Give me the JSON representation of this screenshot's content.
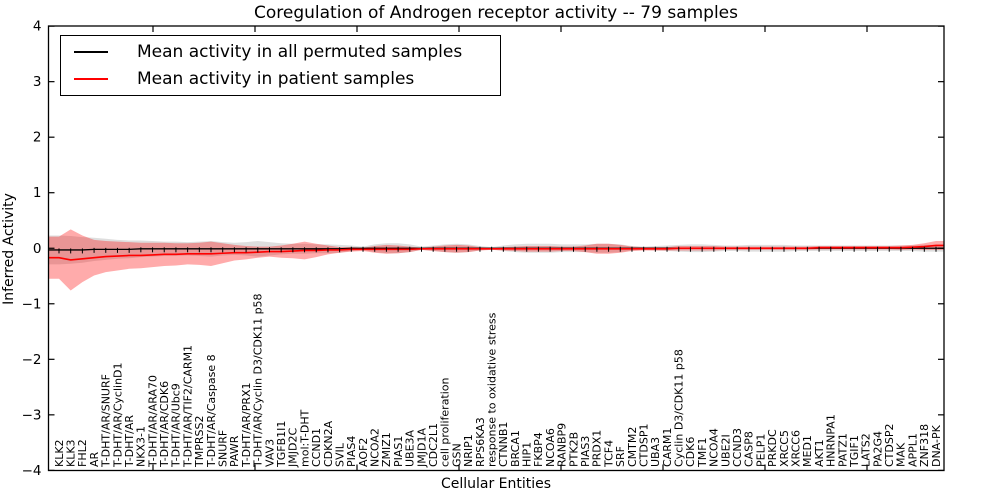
{
  "figure": {
    "title": "Coregulation of Androgen receptor activity -- 79 samples",
    "xlabel": "Cellular Entities",
    "ylabel": "Inferred Activity"
  },
  "legend": {
    "items": [
      {
        "label": "Mean activity in all permuted samples",
        "color": "#000000"
      },
      {
        "label": "Mean activity in patient samples",
        "color": "#ff0000"
      }
    ]
  },
  "chart_data": {
    "type": "line",
    "title": "Coregulation of Androgen receptor activity -- 79 samples",
    "xlabel": "Cellular Entities",
    "ylabel": "Inferred Activity",
    "ylim": [
      -4,
      4
    ],
    "yticks": [
      -4,
      -3,
      -2,
      -1,
      0,
      1,
      2,
      3,
      4
    ],
    "grid": false,
    "legend_position": "upper left",
    "band_meaning": "mean +/- std shaded region per series",
    "categories": [
      "KLK2",
      "KLK3",
      "FHL2",
      "AR",
      "T-DHT/AR/SNURF",
      "T-DHT/AR/CyclinD1",
      "T-DHT/AR",
      "NKX3-1",
      "T-DHT/AR/ARA70",
      "T-DHT/AR/CDK6",
      "T-DHT/AR/Ubc9",
      "T-DHT/AR/TIF2/CARM1",
      "TMPRSS2",
      "T-DHT/AR/Caspase 8",
      "SNURF",
      "PAWR",
      "T-DHT/AR/PRX1",
      "T-DHT/AR/Cyclin D3/CDK11 p58",
      "VAV3",
      "TGFB1I1",
      "JMJD2C",
      "mol:T-DHT",
      "CCND1",
      "CDKN2A",
      "SVIL",
      "PIAS4",
      "AOF2",
      "NCOA2",
      "ZMIZ1",
      "PIAS1",
      "UBE3A",
      "JMJD1A",
      "CDC2L1",
      "cell proliferation",
      "GSN",
      "NRIP1",
      "RPS6KA3",
      "response to oxidative stress",
      "CTNNB1",
      "BRCA1",
      "HIP1",
      "FKBP4",
      "NCOA6",
      "RANBP9",
      "PTK2B",
      "PIAS3",
      "PRDX1",
      "TCF4",
      "SRF",
      "CMTM2",
      "CTDSP1",
      "UBA3",
      "CARM1",
      "Cyclin D3/CDK11 p58",
      "CDK6",
      "TMF1",
      "NCOA4",
      "UBE2I",
      "CCND3",
      "CASP8",
      "PELP1",
      "PRKDC",
      "XRCC5",
      "XRCC6",
      "MED1",
      "AKT1",
      "HNRNPA1",
      "PATZ1",
      "TGIF1",
      "LATS2",
      "PA2G4",
      "CTDSP2",
      "MAK",
      "APPL1",
      "ZNF318",
      "DNA-PK"
    ],
    "series": [
      {
        "name": "Mean activity in all permuted samples",
        "color": "#000000",
        "band_color": "rgba(0,0,0,0.13)",
        "markers": true,
        "mean": [
          -0.03,
          -0.03,
          -0.03,
          -0.02,
          -0.02,
          -0.02,
          -0.02,
          -0.01,
          -0.01,
          -0.01,
          -0.01,
          -0.01,
          -0.01,
          -0.01,
          -0.01,
          -0.01,
          -0.01,
          -0.01,
          -0.01,
          -0.01,
          -0.01,
          -0.01,
          -0.01,
          -0.01,
          -0.01,
          0,
          0,
          0,
          0,
          0,
          0,
          0,
          0,
          0,
          0,
          0,
          0,
          0,
          0,
          0,
          0,
          0,
          0,
          0,
          0,
          0,
          0,
          0,
          0,
          0,
          0,
          0,
          0,
          0,
          0,
          0,
          0,
          0,
          0,
          0,
          0,
          0,
          0,
          0,
          0,
          0,
          0,
          0,
          0,
          0,
          0,
          0,
          0,
          0,
          0,
          0
        ],
        "std": [
          0.26,
          0.25,
          0.23,
          0.21,
          0.19,
          0.17,
          0.16,
          0.15,
          0.14,
          0.13,
          0.13,
          0.12,
          0.13,
          0.14,
          0.12,
          0.11,
          0.12,
          0.14,
          0.12,
          0.1,
          0.09,
          0.09,
          0.08,
          0.08,
          0.07,
          0.05,
          0.03,
          0.07,
          0.09,
          0.09,
          0.07,
          0.03,
          0.05,
          0.07,
          0.08,
          0.07,
          0.04,
          0.02,
          0.05,
          0.07,
          0.08,
          0.08,
          0.08,
          0.07,
          0.07,
          0.07,
          0.08,
          0.08,
          0.07,
          0.04,
          0.03,
          0.04,
          0.05,
          0.06,
          0.07,
          0.07,
          0.06,
          0.05,
          0.05,
          0.06,
          0.06,
          0.06,
          0.06,
          0.05,
          0.05,
          0.05,
          0.05,
          0.05,
          0.05,
          0.05,
          0.05,
          0.05,
          0.05,
          0.05,
          0.06,
          0.06
        ]
      },
      {
        "name": "Mean activity in patient samples",
        "color": "#ff0000",
        "band_color": "rgba(255,0,0,0.33)",
        "markers": false,
        "mean": [
          -0.17,
          -0.21,
          -0.19,
          -0.17,
          -0.15,
          -0.14,
          -0.13,
          -0.13,
          -0.12,
          -0.11,
          -0.11,
          -0.1,
          -0.1,
          -0.1,
          -0.09,
          -0.08,
          -0.08,
          -0.07,
          -0.06,
          -0.06,
          -0.05,
          -0.04,
          -0.04,
          -0.03,
          -0.03,
          -0.02,
          -0.02,
          -0.02,
          -0.02,
          -0.02,
          -0.02,
          -0.01,
          -0.01,
          -0.01,
          -0.01,
          -0.01,
          -0.01,
          -0.01,
          -0.01,
          -0.01,
          -0.01,
          -0.01,
          -0.01,
          -0.01,
          -0.01,
          -0.01,
          -0.01,
          -0.01,
          -0.01,
          -0.01,
          -0.01,
          -0.01,
          -0.01,
          0,
          0,
          0,
          0,
          0,
          0,
          0,
          0,
          0,
          0,
          0,
          0,
          0.01,
          0.01,
          0.01,
          0.01,
          0.01,
          0.01,
          0.01,
          0.01,
          0.02,
          0.03,
          0.05
        ],
        "std": [
          0.38,
          0.55,
          0.42,
          0.32,
          0.28,
          0.26,
          0.24,
          0.23,
          0.22,
          0.21,
          0.2,
          0.19,
          0.2,
          0.22,
          0.18,
          0.14,
          0.12,
          0.1,
          0.09,
          0.11,
          0.13,
          0.16,
          0.12,
          0.08,
          0.05,
          0.04,
          0.03,
          0.06,
          0.08,
          0.07,
          0.05,
          0.02,
          0.04,
          0.06,
          0.07,
          0.06,
          0.03,
          0.02,
          0.03,
          0.04,
          0.05,
          0.05,
          0.05,
          0.04,
          0.04,
          0.06,
          0.09,
          0.09,
          0.07,
          0.04,
          0.03,
          0.03,
          0.03,
          0.04,
          0.04,
          0.04,
          0.04,
          0.03,
          0.03,
          0.03,
          0.03,
          0.03,
          0.03,
          0.03,
          0.03,
          0.03,
          0.03,
          0.03,
          0.03,
          0.03,
          0.03,
          0.03,
          0.04,
          0.04,
          0.06,
          0.08
        ]
      }
    ]
  }
}
